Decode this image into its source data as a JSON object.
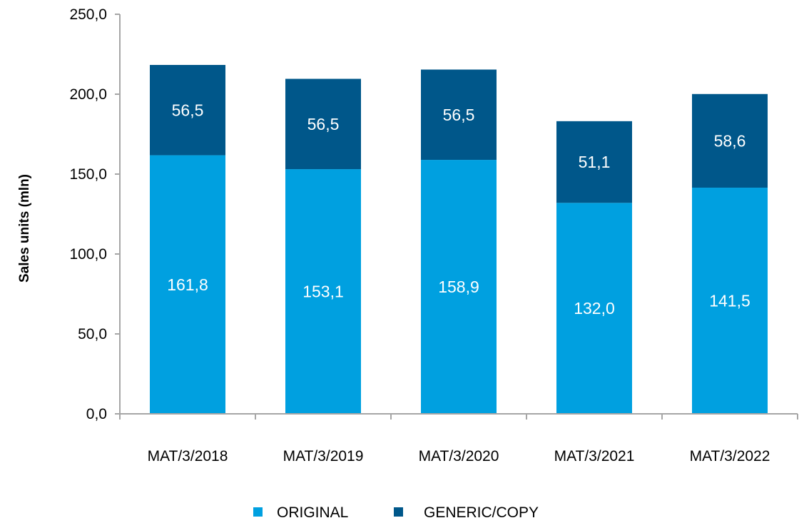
{
  "chart_data": {
    "type": "bar",
    "stacked": true,
    "title": "",
    "xlabel": "",
    "ylabel": "Sales units (mln)",
    "ylim": [
      0,
      250
    ],
    "yticks": [
      "0,0",
      "50,0",
      "100,0",
      "150,0",
      "200,0",
      "250,0"
    ],
    "ytick_values": [
      0,
      50,
      100,
      150,
      200,
      250
    ],
    "grid": false,
    "legend_position": "bottom",
    "categories": [
      "MAT/3/2018",
      "MAT/3/2019",
      "MAT/3/2020",
      "MAT/3/2021",
      "MAT/3/2022"
    ],
    "series": [
      {
        "name": "ORIGINAL",
        "color": "#00a0e0",
        "values": [
          161.8,
          153.1,
          158.9,
          132.0,
          141.5
        ],
        "labels": [
          "161,8",
          "153,1",
          "158,9",
          "132,0",
          "141,5"
        ]
      },
      {
        "name": "GENERIC/COPY",
        "color": "#00578a",
        "values": [
          56.5,
          56.5,
          56.5,
          51.1,
          58.6
        ],
        "labels": [
          "56,5",
          "56,5",
          "56,5",
          "51,1",
          "58,6"
        ]
      }
    ]
  }
}
